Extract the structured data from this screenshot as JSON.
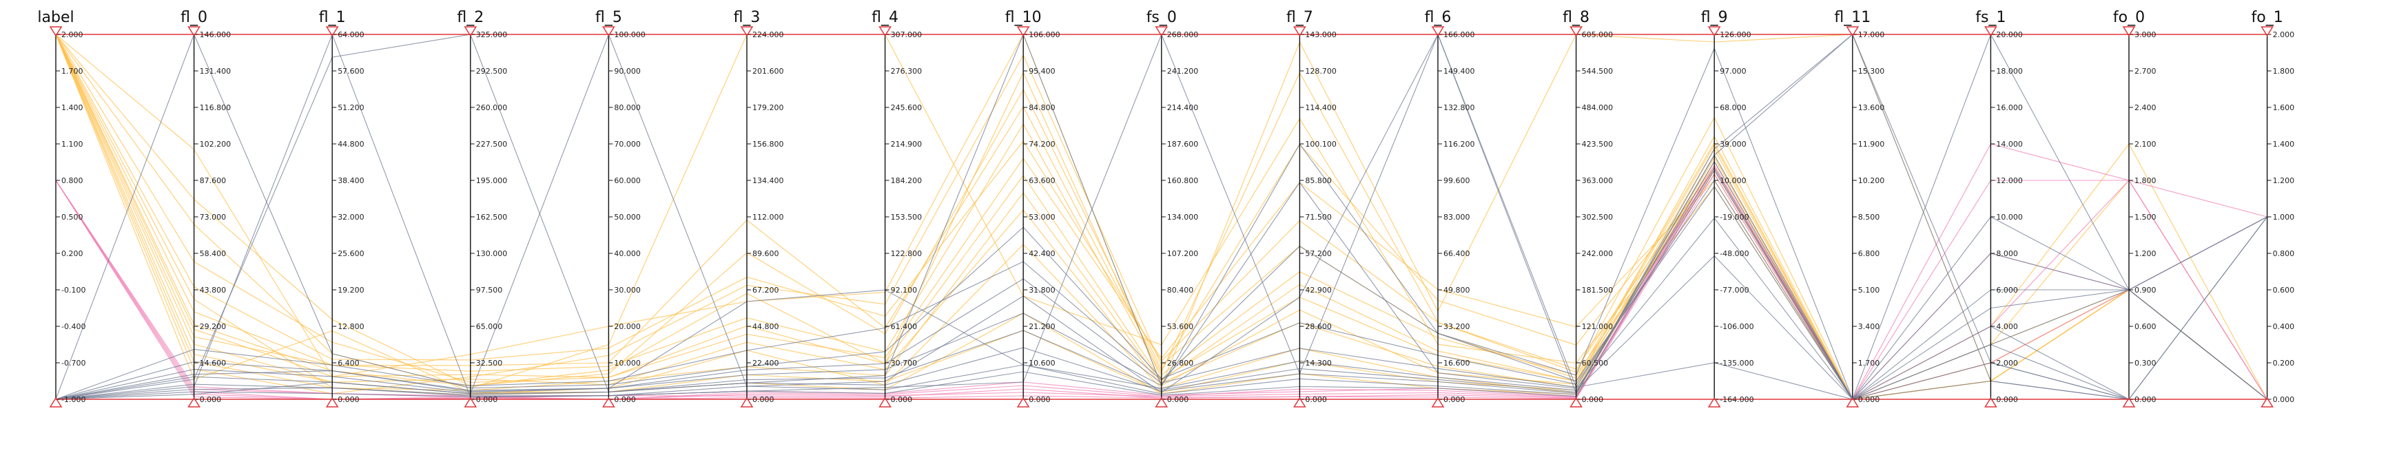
{
  "chart_data": {
    "type": "parallel-coordinates",
    "grid": false,
    "legend": "none",
    "colors": {
      "label_high": "#ffc04d",
      "label_mid": "#f07ab0",
      "label_low": "#6e7891",
      "range": "#e0353a"
    },
    "axes": [
      {
        "name": "label",
        "min": -1.0,
        "max": 2.0,
        "ticks": [
          "2.000",
          "1.700",
          "1.400",
          "1.100",
          "0.800",
          "0.500",
          "0.200",
          "-0.100",
          "-0.400",
          "-0.700",
          "-1.000"
        ]
      },
      {
        "name": "fl_0",
        "min": 0,
        "max": 146,
        "ticks": [
          "146.000",
          "131.400",
          "116.800",
          "102.200",
          "87.600",
          "73.000",
          "58.400",
          "43.800",
          "29.200",
          "14.600",
          "0.000"
        ]
      },
      {
        "name": "fl_1",
        "min": 0,
        "max": 64,
        "ticks": [
          "64.000",
          "57.600",
          "51.200",
          "44.800",
          "38.400",
          "32.000",
          "25.600",
          "19.200",
          "12.800",
          "6.400",
          "0.000"
        ]
      },
      {
        "name": "fl_2",
        "min": 0,
        "max": 325,
        "ticks": [
          "325.000",
          "292.500",
          "260.000",
          "227.500",
          "195.000",
          "162.500",
          "130.000",
          "97.500",
          "65.000",
          "32.500",
          "0.000"
        ]
      },
      {
        "name": "fl_5",
        "min": 0,
        "max": 100,
        "ticks": [
          "100.000",
          "90.000",
          "80.000",
          "70.000",
          "60.000",
          "50.000",
          "40.000",
          "30.000",
          "20.000",
          "10.000",
          "0.000"
        ]
      },
      {
        "name": "fl_3",
        "min": 0,
        "max": 224,
        "ticks": [
          "224.000",
          "201.600",
          "179.200",
          "156.800",
          "134.400",
          "112.000",
          "89.600",
          "67.200",
          "44.800",
          "22.400",
          "0.000"
        ]
      },
      {
        "name": "fl_4",
        "min": 0,
        "max": 307,
        "ticks": [
          "307.000",
          "276.300",
          "245.600",
          "214.900",
          "184.200",
          "153.500",
          "122.800",
          "92.100",
          "61.400",
          "30.700",
          "0.000"
        ]
      },
      {
        "name": "fl_10",
        "min": 0,
        "max": 106,
        "ticks": [
          "106.000",
          "95.400",
          "84.800",
          "74.200",
          "63.600",
          "53.000",
          "42.400",
          "31.800",
          "21.200",
          "10.600",
          "0.000"
        ]
      },
      {
        "name": "fs_0",
        "min": 0,
        "max": 268,
        "ticks": [
          "268.000",
          "241.200",
          "214.400",
          "187.600",
          "160.800",
          "134.000",
          "107.200",
          "80.400",
          "53.600",
          "26.800",
          "0.000"
        ]
      },
      {
        "name": "fl_7",
        "min": 0,
        "max": 143,
        "ticks": [
          "143.000",
          "128.700",
          "114.400",
          "100.100",
          "85.800",
          "71.500",
          "57.200",
          "42.900",
          "28.600",
          "14.300",
          "0.000"
        ]
      },
      {
        "name": "fl_6",
        "min": 0,
        "max": 166,
        "ticks": [
          "166.000",
          "149.400",
          "132.800",
          "116.200",
          "99.600",
          "83.000",
          "66.400",
          "49.800",
          "33.200",
          "16.600",
          "0.000"
        ]
      },
      {
        "name": "fl_8",
        "min": 0,
        "max": 605,
        "ticks": [
          "605.000",
          "544.500",
          "484.000",
          "423.500",
          "363.000",
          "302.500",
          "242.000",
          "181.500",
          "121.000",
          "60.500",
          "0.000"
        ]
      },
      {
        "name": "fl_9",
        "min": -164,
        "max": 126,
        "ticks": [
          "126.000",
          "97.000",
          "68.000",
          "39.000",
          "10.000",
          "-19.000",
          "-48.000",
          "-77.000",
          "-106.000",
          "-135.000",
          "-164.000"
        ]
      },
      {
        "name": "fl_11",
        "min": 0,
        "max": 17,
        "ticks": [
          "17.000",
          "15.300",
          "13.600",
          "11.900",
          "10.200",
          "8.500",
          "6.800",
          "5.100",
          "3.400",
          "1.700",
          "0.000"
        ]
      },
      {
        "name": "fs_1",
        "min": 0,
        "max": 20,
        "ticks": [
          "20.000",
          "18.000",
          "16.000",
          "14.000",
          "12.000",
          "10.000",
          "8.000",
          "6.000",
          "4.000",
          "2.000",
          "0.000"
        ]
      },
      {
        "name": "fo_0",
        "min": 0,
        "max": 3,
        "ticks": [
          "3.000",
          "2.700",
          "2.400",
          "2.100",
          "1.800",
          "1.500",
          "1.200",
          "0.900",
          "0.600",
          "0.300",
          "0.000"
        ]
      },
      {
        "name": "fo_1",
        "min": 0,
        "max": 2,
        "ticks": [
          "2.000",
          "1.800",
          "1.600",
          "1.400",
          "1.200",
          "1.000",
          "0.800",
          "0.600",
          "0.400",
          "0.200",
          "0.000"
        ]
      }
    ],
    "series": [
      {
        "label": 2,
        "values": [
          2,
          30,
          5,
          12,
          8,
          65,
          30,
          95,
          15,
          40,
          20,
          30,
          20,
          0,
          1,
          0.9,
          0
        ]
      },
      {
        "label": 2,
        "values": [
          2,
          25,
          6,
          30,
          10,
          110,
          60,
          85,
          20,
          128,
          35,
          45,
          60,
          0,
          2,
          0.9,
          0
        ]
      },
      {
        "label": 2,
        "values": [
          2,
          40,
          2,
          8,
          5,
          20,
          20,
          60,
          12,
          30,
          15,
          20,
          35,
          0,
          1,
          0.9,
          0
        ]
      },
      {
        "label": 2,
        "values": [
          2,
          55,
          10,
          15,
          6,
          40,
          35,
          70,
          30,
          85,
          50,
          120,
          10,
          0,
          1,
          0.9,
          0
        ]
      },
      {
        "label": 2,
        "values": [
          2,
          18,
          3,
          5,
          3,
          30,
          12,
          45,
          8,
          20,
          10,
          10,
          25,
          0,
          3,
          1.8,
          0
        ]
      },
      {
        "label": 2,
        "values": [
          2,
          12,
          1,
          20,
          12,
          70,
          80,
          100,
          25,
          60,
          30,
          35,
          40,
          0,
          1,
          0.9,
          0
        ]
      },
      {
        "label": 2,
        "values": [
          2,
          70,
          8,
          10,
          15,
          224,
          307,
          30,
          40,
          110,
          25,
          60,
          5,
          0,
          2,
          0.9,
          0
        ]
      },
      {
        "label": 2,
        "values": [
          2,
          100,
          4,
          40,
          20,
          60,
          90,
          106,
          10,
          140,
          40,
          605,
          120,
          17,
          1,
          0.9,
          0
        ]
      },
      {
        "label": 2,
        "values": [
          2,
          8,
          12,
          6,
          2,
          15,
          15,
          20,
          5,
          15,
          8,
          15,
          30,
          0,
          2,
          0.9,
          0
        ]
      },
      {
        "label": 2,
        "values": [
          2,
          35,
          6,
          25,
          9,
          50,
          40,
          80,
          18,
          50,
          28,
          40,
          15,
          0,
          4,
          2.1,
          0
        ]
      },
      {
        "label": 2,
        "values": [
          2,
          22,
          3,
          18,
          4,
          35,
          25,
          55,
          10,
          35,
          12,
          25,
          45,
          0,
          1,
          0.9,
          0
        ]
      },
      {
        "label": 2,
        "values": [
          2,
          80,
          14,
          12,
          7,
          90,
          55,
          90,
          22,
          100,
          45,
          90,
          18,
          0,
          1,
          0.9,
          0
        ]
      },
      {
        "label": 2,
        "values": [
          2,
          15,
          2,
          4,
          2,
          10,
          8,
          25,
          4,
          10,
          5,
          8,
          28,
          0,
          1,
          0.9,
          0
        ]
      },
      {
        "label": 2,
        "values": [
          2,
          45,
          7,
          35,
          14,
          75,
          70,
          75,
          28,
          70,
          35,
          50,
          22,
          0,
          3,
          0.9,
          0
        ]
      },
      {
        "label": 2,
        "values": [
          2,
          28,
          4,
          22,
          6,
          45,
          30,
          65,
          14,
          45,
          22,
          30,
          38,
          0,
          2,
          0.9,
          0
        ]
      },
      {
        "label": 0.8,
        "values": [
          0.8,
          5,
          1,
          3,
          1,
          5,
          5,
          5,
          3,
          3,
          5,
          5,
          20,
          0,
          14,
          1.8,
          0
        ]
      },
      {
        "label": 0.8,
        "values": [
          0.8,
          2,
          0,
          2,
          0,
          3,
          3,
          2,
          2,
          2,
          3,
          3,
          25,
          0,
          12,
          1.8,
          1
        ]
      },
      {
        "label": 0.8,
        "values": [
          0.8,
          3,
          0,
          1,
          1,
          2,
          2,
          3,
          1,
          1,
          2,
          2,
          18,
          0,
          8,
          0.9,
          1
        ]
      },
      {
        "label": 0.8,
        "values": [
          0.8,
          4,
          1,
          2,
          0,
          4,
          4,
          4,
          2,
          4,
          4,
          4,
          22,
          0,
          4,
          1.8,
          0
        ]
      },
      {
        "label": 0.8,
        "values": [
          0.8,
          1,
          0,
          1,
          0,
          1,
          1,
          1,
          1,
          1,
          1,
          1,
          15,
          0,
          2,
          0.9,
          0
        ]
      },
      {
        "label": -1,
        "values": [
          -1,
          5,
          64,
          2,
          1,
          5,
          10,
          5,
          268,
          10,
          166,
          20,
          20,
          0,
          6,
          0.9,
          0
        ]
      },
      {
        "label": -1,
        "values": [
          -1,
          8,
          60,
          325,
          2,
          10,
          20,
          106,
          10,
          100,
          30,
          40,
          115,
          0,
          20,
          0.9,
          1
        ]
      },
      {
        "label": -1,
        "values": [
          -1,
          2,
          3,
          5,
          100,
          8,
          15,
          30,
          5,
          40,
          166,
          10,
          30,
          17,
          2,
          0,
          0
        ]
      },
      {
        "label": -1,
        "values": [
          -1,
          10,
          5,
          8,
          3,
          60,
          92,
          10,
          8,
          15,
          10,
          15,
          -50,
          0,
          4,
          0,
          1
        ]
      },
      {
        "label": -1,
        "values": [
          -1,
          146,
          8,
          10,
          4,
          20,
          40,
          50,
          15,
          30,
          20,
          25,
          10,
          0,
          3,
          0.9,
          0
        ]
      },
      {
        "label": -1,
        "values": [
          -1,
          3,
          1,
          2,
          1,
          5,
          5,
          8,
          3,
          5,
          5,
          5,
          18,
          0,
          1,
          0,
          0
        ]
      },
      {
        "label": -1,
        "values": [
          -1,
          6,
          2,
          4,
          2,
          10,
          12,
          15,
          6,
          10,
          8,
          10,
          25,
          0,
          2,
          0,
          0
        ]
      },
      {
        "label": -1,
        "values": [
          -1,
          12,
          4,
          6,
          3,
          15,
          25,
          25,
          10,
          85,
          12,
          18,
          -20,
          0,
          8,
          0.9,
          1
        ]
      },
      {
        "label": -1,
        "values": [
          -1,
          20,
          6,
          12,
          5,
          30,
          60,
          40,
          14,
          60,
          30,
          30,
          5,
          0,
          5,
          0.9,
          0
        ]
      },
      {
        "label": -1,
        "values": [
          -1,
          4,
          2,
          3,
          1,
          8,
          8,
          10,
          4,
          8,
          6,
          8,
          35,
          17,
          1,
          0,
          0
        ]
      },
      {
        "label": -1,
        "values": [
          -1,
          9,
          3,
          5,
          2,
          12,
          18,
          20,
          7,
          12,
          9,
          12,
          30,
          0,
          10,
          0.9,
          0
        ]
      },
      {
        "label": -1,
        "values": [
          -1,
          15,
          5,
          7,
          3,
          18,
          30,
          35,
          12,
          20,
          14,
          20,
          -135,
          0,
          3,
          0,
          1
        ]
      }
    ]
  }
}
